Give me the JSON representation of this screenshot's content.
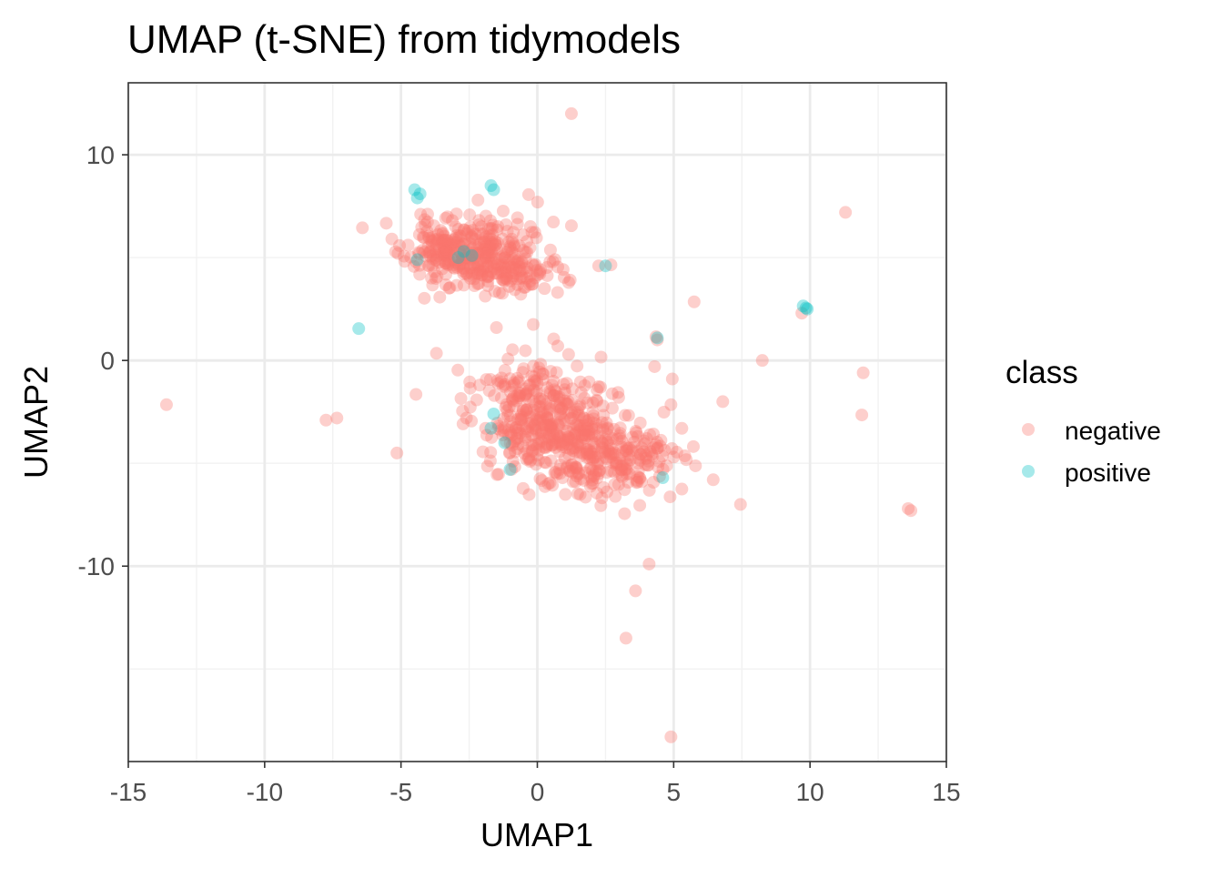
{
  "colors": {
    "negative": "#F8766D",
    "positive": "#00BFC4",
    "grid_major": "#EBEBEB",
    "grid_minor": "#F2F2F2",
    "axis": "#333333"
  },
  "chart_data": {
    "type": "scatter",
    "title": "UMAP (t-SNE) from tidymodels",
    "xlabel": "UMAP1",
    "ylabel": "UMAP2",
    "xlim": [
      -15,
      15
    ],
    "ylim": [
      -19.5,
      13.5
    ],
    "x_ticks": [
      -15,
      -10,
      -5,
      0,
      5,
      10,
      15
    ],
    "x_tick_labels": [
      "-15",
      "-10",
      "-5",
      "0",
      "5",
      "10",
      "15"
    ],
    "y_ticks": [
      -10,
      0,
      10
    ],
    "y_tick_labels": [
      "-10",
      "0",
      "10"
    ],
    "grid": true,
    "legend": {
      "title": "class",
      "position": "right",
      "entries": [
        "negative",
        "positive"
      ]
    },
    "series": [
      {
        "name": "negative",
        "points": [
          [
            1.25,
            12.0
          ],
          [
            11.3,
            7.2
          ],
          [
            5.75,
            2.85
          ],
          [
            9.7,
            2.3
          ],
          [
            8.25,
            0.0
          ],
          [
            11.95,
            -0.6
          ],
          [
            11.9,
            -2.65
          ],
          [
            6.8,
            -2.0
          ],
          [
            7.45,
            -7.0
          ],
          [
            6.45,
            -5.8
          ],
          [
            13.6,
            -7.2
          ],
          [
            13.7,
            -7.3
          ],
          [
            4.95,
            -0.9
          ],
          [
            4.9,
            -2.15
          ],
          [
            4.35,
            1.15
          ],
          [
            4.4,
            1.0
          ],
          [
            4.3,
            -0.3
          ],
          [
            4.1,
            -9.9
          ],
          [
            3.6,
            -11.2
          ],
          [
            3.25,
            -13.5
          ],
          [
            4.9,
            -18.3
          ],
          [
            -13.6,
            -2.15
          ],
          [
            -7.75,
            -2.9
          ],
          [
            -7.35,
            -2.8
          ],
          [
            -5.15,
            -4.5
          ],
          [
            -4.45,
            -1.65
          ],
          [
            -3.7,
            0.35
          ],
          [
            -2.8,
            -1.85
          ],
          [
            -2.6,
            -2.8
          ],
          [
            -1.5,
            1.6
          ],
          [
            -0.15,
            1.75
          ],
          [
            0.6,
            1.05
          ],
          [
            0.75,
            0.7
          ],
          [
            1.25,
            6.55
          ],
          [
            0.65,
            4.9
          ],
          [
            2.25,
            4.6
          ],
          [
            2.7,
            4.65
          ],
          [
            5.0,
            -4.7
          ],
          [
            5.3,
            -3.3
          ],
          [
            3.2,
            -7.45
          ]
        ],
        "clusters": [
          {
            "center": [
              -2.6,
              5.3
            ],
            "spread": [
              1.1,
              0.8
            ],
            "count": 320,
            "seed": 11
          },
          {
            "center": [
              -1.0,
              4.2
            ],
            "spread": [
              1.0,
              0.5
            ],
            "count": 90,
            "seed": 23
          },
          {
            "center": [
              0.5,
              -3.2
            ],
            "spread": [
              1.2,
              1.2
            ],
            "count": 330,
            "seed": 37
          },
          {
            "center": [
              2.6,
              -4.9
            ],
            "spread": [
              1.1,
              0.9
            ],
            "count": 220,
            "seed": 51
          },
          {
            "center": [
              -0.5,
              -1.2
            ],
            "spread": [
              0.9,
              0.5
            ],
            "count": 60,
            "seed": 67
          }
        ]
      },
      {
        "name": "positive",
        "points": [
          [
            -4.5,
            8.3
          ],
          [
            -4.4,
            7.9
          ],
          [
            -4.3,
            8.1
          ],
          [
            -1.7,
            8.5
          ],
          [
            -1.6,
            8.3
          ],
          [
            -6.55,
            1.55
          ],
          [
            9.75,
            2.65
          ],
          [
            9.9,
            2.5
          ],
          [
            9.85,
            2.55
          ],
          [
            -2.4,
            5.1
          ],
          [
            -2.7,
            5.3
          ],
          [
            -2.9,
            5.0
          ],
          [
            -1.6,
            -2.6
          ],
          [
            -1.0,
            -5.3
          ],
          [
            -1.2,
            -4.0
          ],
          [
            -1.7,
            -3.3
          ],
          [
            4.6,
            -5.7
          ],
          [
            4.4,
            1.1
          ],
          [
            2.5,
            4.6
          ],
          [
            -4.4,
            4.9
          ]
        ]
      }
    ]
  }
}
